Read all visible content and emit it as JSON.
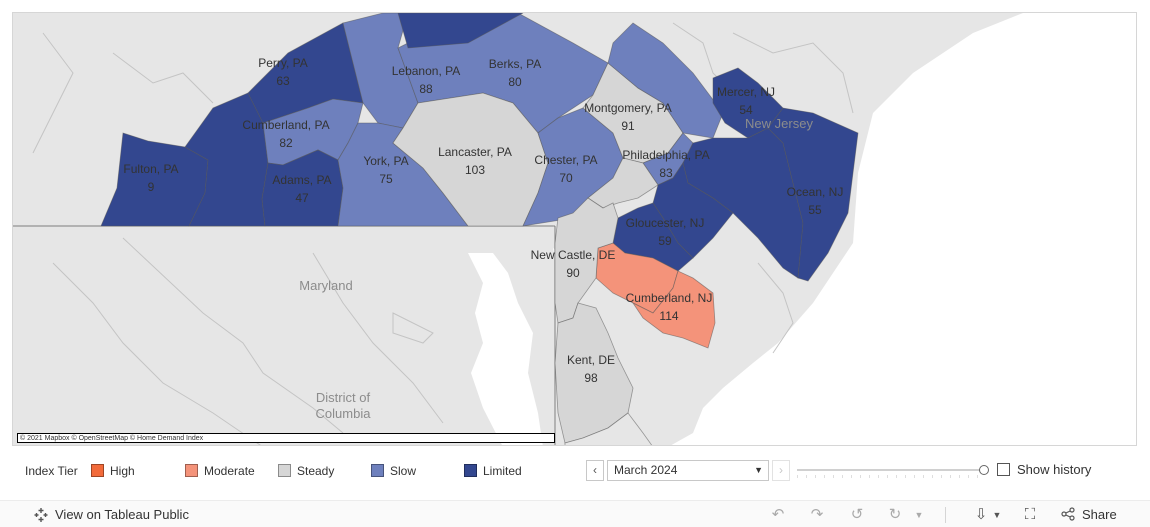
{
  "map": {
    "attribution": "© 2021 Mapbox © OpenStreetMap  © Home Demand Index",
    "region_labels": [
      "Maryland",
      "New Jersey",
      "District of",
      "Columbia"
    ],
    "counties": [
      {
        "name": "Perry, PA",
        "value": "63",
        "tier": "Limited"
      },
      {
        "name": "Lebanon, PA",
        "value": "88",
        "tier": "Slow"
      },
      {
        "name": "Berks, PA",
        "value": "80",
        "tier": "Slow"
      },
      {
        "name": "Montgomery, PA",
        "value": "91",
        "tier": "Steady"
      },
      {
        "name": "Mercer, NJ",
        "value": "54",
        "tier": "Limited"
      },
      {
        "name": "Cumberland, PA",
        "value": "82",
        "tier": "Slow"
      },
      {
        "name": "Fulton, PA",
        "value": "9",
        "tier": "Limited"
      },
      {
        "name": "Lancaster, PA",
        "value": "103",
        "tier": "Steady"
      },
      {
        "name": "Chester, PA",
        "value": "70",
        "tier": "Slow"
      },
      {
        "name": "Philadelphia, PA",
        "value": "83",
        "tier": "Slow"
      },
      {
        "name": "York, PA",
        "value": "75",
        "tier": "Slow"
      },
      {
        "name": "Adams, PA",
        "value": "47",
        "tier": "Limited"
      },
      {
        "name": "Ocean, NJ",
        "value": "55",
        "tier": "Limited"
      },
      {
        "name": "Gloucester, NJ",
        "value": "59",
        "tier": "Limited"
      },
      {
        "name": "New Castle, DE",
        "value": "90",
        "tier": "Steady"
      },
      {
        "name": "Cumberland, NJ",
        "value": "114",
        "tier": "Moderate"
      },
      {
        "name": "Kent, DE",
        "value": "98",
        "tier": "Steady"
      }
    ]
  },
  "legend": {
    "title": "Index Tier",
    "items": [
      {
        "label": "High",
        "color": "#f26a3a"
      },
      {
        "label": "Moderate",
        "color": "#f4937a"
      },
      {
        "label": "Steady",
        "color": "#d6d6d6"
      },
      {
        "label": "Slow",
        "color": "#6e80bd"
      },
      {
        "label": "Limited",
        "color": "#33478f"
      }
    ]
  },
  "date_filter": {
    "selected": "March 2024",
    "prev_icon": "chevron-left-icon",
    "next_icon": "chevron-right-icon",
    "slider_position": 1.0
  },
  "show_history": {
    "label": "Show history",
    "checked": false
  },
  "toolbar": {
    "view_label": "View on Tableau Public",
    "share_label": "Share",
    "icons": [
      "undo-icon",
      "redo-icon",
      "revert-icon",
      "refresh-icon",
      "download-icon",
      "fullscreen-icon",
      "share-icon"
    ]
  }
}
